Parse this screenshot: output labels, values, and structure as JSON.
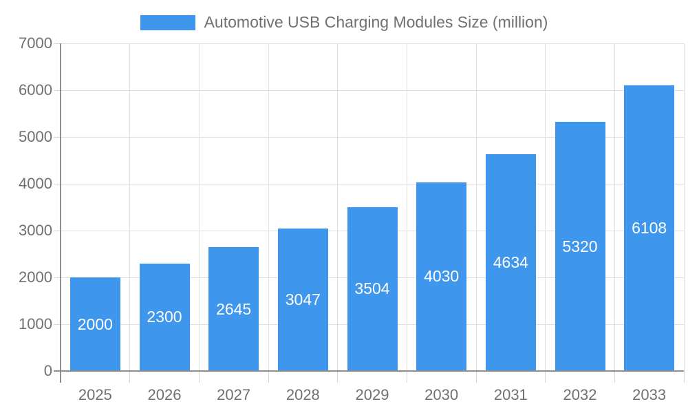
{
  "chart_data": {
    "type": "bar",
    "title": "Automotive USB Charging Modules Size (million)",
    "legend_position": "top",
    "categories": [
      "2025",
      "2026",
      "2027",
      "2028",
      "2029",
      "2030",
      "2031",
      "2032",
      "2033"
    ],
    "values": [
      2000,
      2300,
      2645,
      3047,
      3504,
      4030,
      4634,
      5320,
      6108
    ],
    "xlabel": "",
    "ylabel": "",
    "ylim": [
      0,
      7000
    ],
    "yticks": [
      0,
      1000,
      2000,
      3000,
      4000,
      5000,
      6000,
      7000
    ],
    "grid": true,
    "colors": {
      "bar": "#3E96ED",
      "value_label": "#FFFFFF",
      "axis_text": "#707070",
      "gridline": "#E0E0E0",
      "tick": "#D6D6D6",
      "axis_line": "#8E8E8E",
      "background": "#FFFFFF"
    }
  }
}
